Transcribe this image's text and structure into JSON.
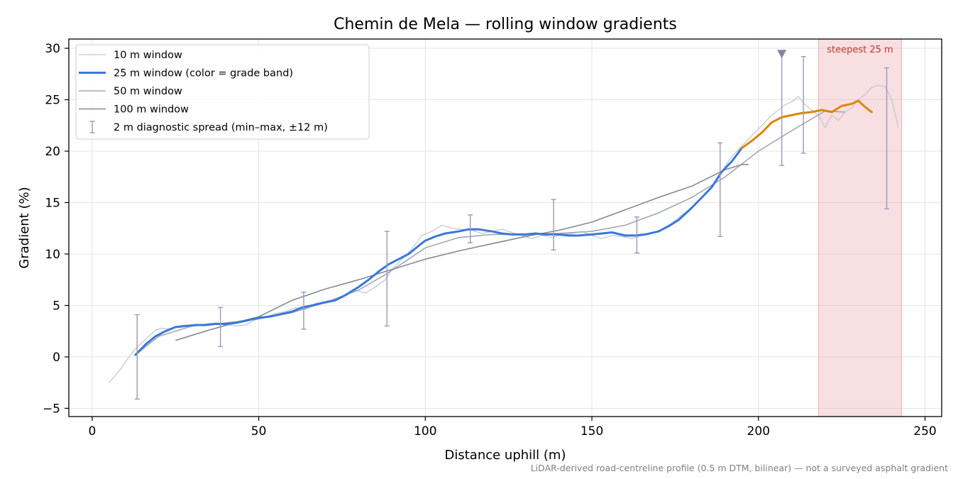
{
  "chart_data": {
    "type": "line",
    "title": "Chemin de Mela — rolling window gradients",
    "xlabel": "Distance uphill (m)",
    "ylabel": "Gradient (%)",
    "xlim": [
      -7,
      255
    ],
    "ylim": [
      -5.8,
      30.9
    ],
    "xticks": [
      0,
      50,
      100,
      150,
      200,
      250
    ],
    "yticks": [
      -5,
      0,
      5,
      10,
      15,
      20,
      25,
      30
    ],
    "grid": true,
    "legend_position": "top-left",
    "footnote": "LiDAR-derived road-centreline profile (0.5 m DTM, bilinear) — not a surveyed asphalt gradient",
    "legend": [
      {
        "label": "10 m window",
        "color": "#c3c8d3",
        "width": 1.3,
        "kind": "line"
      },
      {
        "label": "25 m window (color = grade band)",
        "color": "#3a78d8",
        "width": 3,
        "kind": "line"
      },
      {
        "label": "50 m window",
        "color": "#a0a8b5",
        "width": 1.6,
        "kind": "line"
      },
      {
        "label": "100 m window",
        "color": "#838995",
        "width": 1.6,
        "kind": "line"
      },
      {
        "label": "2 m diagnostic spread (min–max, ±12 m)",
        "color": "#9d97b9",
        "kind": "errorbar"
      }
    ],
    "series": [
      {
        "name": "10 m window",
        "color": "#c3c8d3",
        "x": [
          5,
          7,
          9,
          11,
          13,
          15,
          17,
          19,
          21,
          23,
          25,
          28,
          31,
          34,
          37,
          40,
          43,
          46,
          49,
          52,
          55,
          58,
          61,
          64,
          67,
          70,
          73,
          76,
          79,
          82,
          85,
          88,
          90,
          93,
          96,
          99,
          102,
          105,
          108,
          111,
          114,
          117,
          120,
          123,
          126,
          129,
          132,
          135,
          138,
          141,
          144,
          147,
          150,
          153,
          156,
          159,
          162,
          165,
          168,
          171,
          174,
          177,
          180,
          183,
          186,
          189,
          192,
          195,
          198,
          201,
          204,
          206,
          208,
          210,
          212,
          214,
          216,
          218,
          220,
          222,
          224,
          226,
          228,
          230,
          232,
          234,
          236,
          238,
          240,
          242
        ],
        "y": [
          -2.5,
          -1.8,
          -1.0,
          0.0,
          0.8,
          1.4,
          2.0,
          2.6,
          2.8,
          2.7,
          2.9,
          3.1,
          3.0,
          3.2,
          3.3,
          3.2,
          3.0,
          3.1,
          3.6,
          3.9,
          4.2,
          4.4,
          4.8,
          4.6,
          5.2,
          5.4,
          5.6,
          6.0,
          6.5,
          6.2,
          6.8,
          7.5,
          8.5,
          9.5,
          10.5,
          11.8,
          12.2,
          12.8,
          12.5,
          12.4,
          12.3,
          12.0,
          12.2,
          12.4,
          12.1,
          11.8,
          11.5,
          11.8,
          11.6,
          11.9,
          12.0,
          12.2,
          11.8,
          11.5,
          11.8,
          11.7,
          11.5,
          11.8,
          12.0,
          12.4,
          13.0,
          13.8,
          14.5,
          15.5,
          16.5,
          18.0,
          19.5,
          20.5,
          21.5,
          22.5,
          23.5,
          24.0,
          24.5,
          24.8,
          25.3,
          24.5,
          24.0,
          23.5,
          22.3,
          23.5,
          23.0,
          23.8,
          24.2,
          25.0,
          25.5,
          26.2,
          26.4,
          26.3,
          25.0,
          22.3
        ]
      },
      {
        "name": "50 m window",
        "color": "#a0a8b5",
        "x": [
          13,
          20,
          30,
          40,
          50,
          60,
          70,
          80,
          88,
          95,
          100,
          110,
          120,
          130,
          140,
          150,
          160,
          170,
          180,
          190,
          200,
          210,
          220,
          226
        ],
        "y": [
          0.2,
          2.0,
          3.0,
          3.3,
          3.7,
          4.3,
          5.3,
          6.5,
          8.0,
          9.5,
          10.6,
          11.6,
          11.9,
          11.9,
          12.0,
          12.2,
          12.8,
          14.0,
          15.5,
          17.5,
          20.0,
          22.0,
          23.9,
          23.8
        ]
      },
      {
        "name": "100 m window",
        "color": "#838995",
        "x": [
          25,
          35,
          45,
          50,
          60,
          70,
          80,
          90,
          100,
          110,
          120,
          130,
          140,
          150,
          160,
          170,
          180,
          190,
          195,
          197
        ],
        "y": [
          1.6,
          2.6,
          3.5,
          3.9,
          5.5,
          6.6,
          7.5,
          8.5,
          9.5,
          10.3,
          11.0,
          11.7,
          12.3,
          13.1,
          14.3,
          15.5,
          16.6,
          18.2,
          18.7,
          18.7
        ]
      },
      {
        "name": "25 m window",
        "color_bands": [
          {
            "x_max": 195,
            "color": "#3a78d8"
          },
          {
            "x_max": 999,
            "color": "#dd8500"
          }
        ],
        "x": [
          13,
          16,
          19,
          22,
          25,
          28,
          31,
          34,
          37,
          40,
          43,
          46,
          50,
          53,
          56,
          60,
          63,
          66,
          70,
          73,
          76,
          80,
          83,
          86,
          89,
          92,
          95,
          98,
          100,
          103,
          106,
          110,
          113,
          116,
          120,
          123,
          126,
          130,
          133,
          136,
          140,
          143,
          146,
          150,
          153,
          156,
          160,
          163,
          166,
          170,
          173,
          176,
          180,
          183,
          186,
          189,
          192,
          195,
          198,
          201,
          204,
          207,
          210,
          213,
          216,
          219,
          222,
          225,
          228,
          230,
          232,
          234
        ],
        "y": [
          0.2,
          1.2,
          2.0,
          2.5,
          2.9,
          3.0,
          3.1,
          3.1,
          3.2,
          3.2,
          3.3,
          3.5,
          3.8,
          3.9,
          4.1,
          4.4,
          4.8,
          5.0,
          5.3,
          5.5,
          6.0,
          6.8,
          7.5,
          8.3,
          9.0,
          9.5,
          10.0,
          10.8,
          11.3,
          11.7,
          12.0,
          12.2,
          12.4,
          12.4,
          12.2,
          12.0,
          11.9,
          11.9,
          12.0,
          11.9,
          11.9,
          11.8,
          11.8,
          11.9,
          12.0,
          12.1,
          11.8,
          11.8,
          11.9,
          12.2,
          12.7,
          13.3,
          14.5,
          15.5,
          16.5,
          18.0,
          19.0,
          20.3,
          21.0,
          21.8,
          22.8,
          23.3,
          23.5,
          23.7,
          23.8,
          24.0,
          23.8,
          24.4,
          24.6,
          24.9,
          24.3,
          23.8
        ]
      }
    ],
    "error_bars": [
      {
        "x": 13.5,
        "low": -4.1,
        "high": 4.1
      },
      {
        "x": 38.5,
        "low": 1.0,
        "high": 4.8
      },
      {
        "x": 63.5,
        "low": 2.7,
        "high": 6.3
      },
      {
        "x": 88.5,
        "low": 3.0,
        "high": 12.2
      },
      {
        "x": 113.5,
        "low": 11.1,
        "high": 13.8
      },
      {
        "x": 138.5,
        "low": 10.4,
        "high": 15.3
      },
      {
        "x": 163.5,
        "low": 10.1,
        "high": 13.6
      },
      {
        "x": 188.5,
        "low": 11.7,
        "high": 20.8
      },
      {
        "x": 207,
        "low": 18.6,
        "high": 29.5
      },
      {
        "x": 213.5,
        "low": 19.8,
        "high": 29.2
      },
      {
        "x": 238.5,
        "low": 14.4,
        "high": 28.1
      }
    ],
    "marker": {
      "x": 207,
      "y": 29.5,
      "shape": "triangle-down",
      "color": "#8a7fa6"
    },
    "highlight": {
      "x0": 218,
      "x1": 243,
      "label": "steepest 25 m",
      "color": "#e8a4ad",
      "label_color": "#c0392b"
    }
  }
}
